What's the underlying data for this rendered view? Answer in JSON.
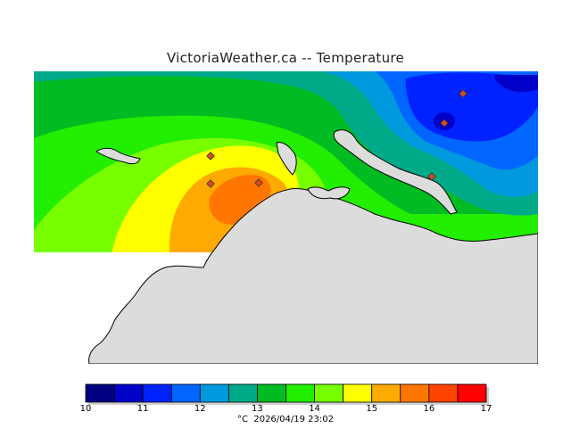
{
  "title": "VictoriaWeather.ca  --  Temperature",
  "footer": {
    "unit": "°C",
    "timestamp": "2026/04/19 23:02"
  },
  "legend": {
    "ticks": [
      "10",
      "11",
      "12",
      "13",
      "14",
      "15",
      "16",
      "17"
    ],
    "bins": [
      {
        "from": 10.0,
        "to": 10.5,
        "color": "#000080"
      },
      {
        "from": 10.5,
        "to": 11.0,
        "color": "#0000c8"
      },
      {
        "from": 11.0,
        "to": 11.5,
        "color": "#0022ff"
      },
      {
        "from": 11.5,
        "to": 12.0,
        "color": "#0066ff"
      },
      {
        "from": 12.0,
        "to": 12.5,
        "color": "#0099dd"
      },
      {
        "from": 12.5,
        "to": 13.0,
        "color": "#00aa88"
      },
      {
        "from": 13.0,
        "to": 13.5,
        "color": "#00bb22"
      },
      {
        "from": 13.5,
        "to": 14.0,
        "color": "#22ee00"
      },
      {
        "from": 14.0,
        "to": 14.5,
        "color": "#77ff00"
      },
      {
        "from": 14.5,
        "to": 15.0,
        "color": "#ffff00"
      },
      {
        "from": 15.0,
        "to": 15.5,
        "color": "#ffaa00"
      },
      {
        "from": 15.5,
        "to": 16.0,
        "color": "#ff7700"
      },
      {
        "from": 16.0,
        "to": 16.5,
        "color": "#ff4400"
      },
      {
        "from": 16.5,
        "to": 17.0,
        "color": "#ff0000"
      }
    ]
  },
  "map": {
    "land_color": "#dcdcdc",
    "coast_color": "#000000",
    "station_marker_color": "#d94a1e",
    "station_count": 6
  }
}
